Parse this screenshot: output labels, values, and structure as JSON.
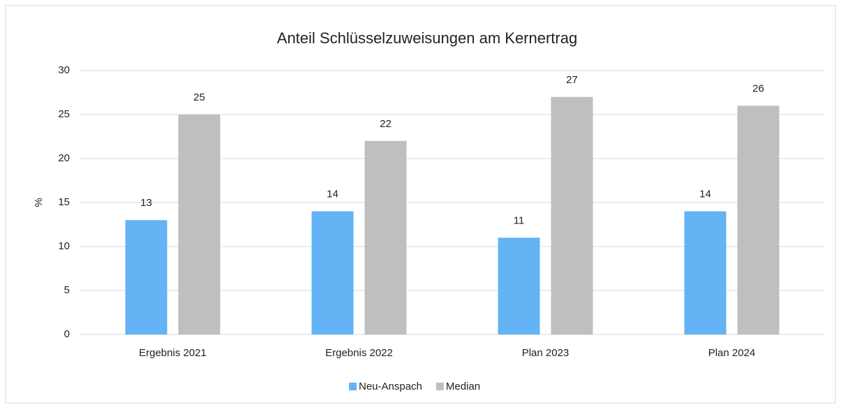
{
  "chart_data": {
    "type": "bar",
    "title": "Anteil Schlüsselzuweisungen am Kernertrag",
    "y_label": "%",
    "categories": [
      "Ergebnis 2021",
      "Ergebnis 2022",
      "Plan 2023",
      "Plan 2024"
    ],
    "series": [
      {
        "name": "Neu-Anspach",
        "color": "#63b3f5",
        "values": [
          13,
          14,
          11,
          14
        ]
      },
      {
        "name": "Median",
        "color": "#bfbfbf",
        "values": [
          25,
          22,
          27,
          26
        ]
      }
    ],
    "ylim": [
      0,
      30
    ],
    "yticks": [
      0,
      5,
      10,
      15,
      20,
      25,
      30
    ],
    "grid": true,
    "legend": "bottom"
  }
}
